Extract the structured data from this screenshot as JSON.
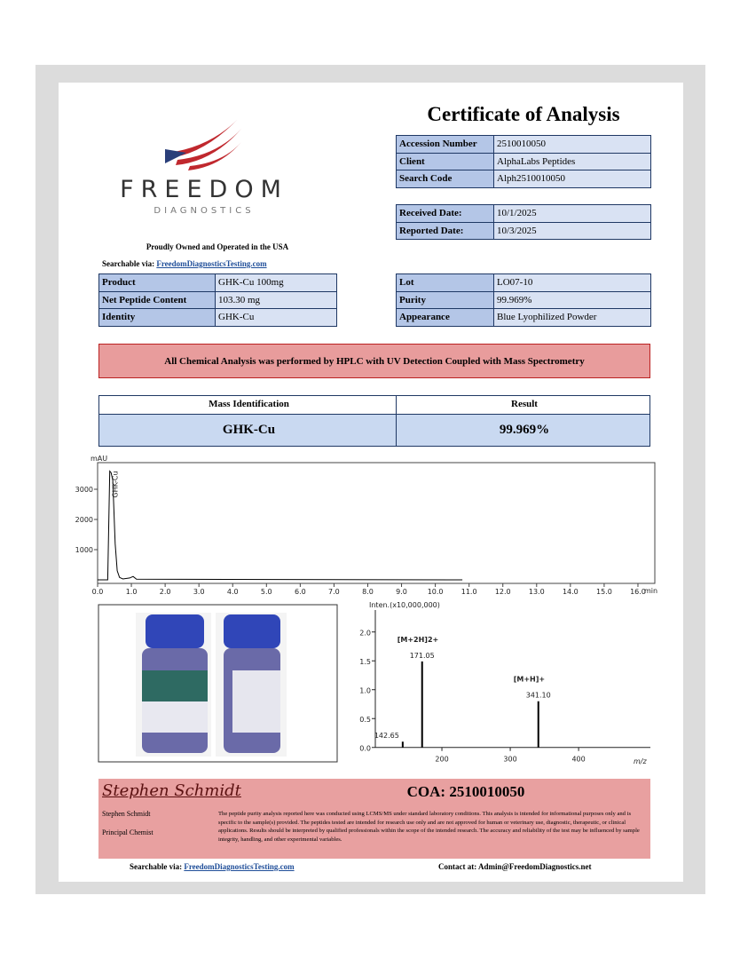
{
  "header": {
    "title": "Certificate of Analysis",
    "logo_name": "FREEDOM",
    "logo_sub": "DIAGNOSTICS",
    "tagline": "Proudly Owned and Operated in the USA",
    "searchable_label": "Searchable via:",
    "searchable_link": "FreedomDiagnosticsTesting.com"
  },
  "info_table": {
    "rows": [
      [
        "Accession Number",
        "2510010050"
      ],
      [
        "Client",
        "AlphaLabs Peptides"
      ],
      [
        "Search Code",
        "Alph2510010050"
      ]
    ]
  },
  "dates_table": {
    "rows": [
      [
        "Received Date:",
        "10/1/2025"
      ],
      [
        "Reported Date:",
        "10/3/2025"
      ]
    ]
  },
  "product_table": {
    "rows": [
      [
        "Product",
        "GHK-Cu 100mg"
      ],
      [
        "Net Peptide Content",
        "103.30 mg"
      ],
      [
        "Identity",
        "GHK-Cu"
      ]
    ]
  },
  "lot_table": {
    "rows": [
      [
        "Lot",
        "LO07-10"
      ],
      [
        "Purity",
        "99.969%"
      ],
      [
        "Appearance",
        "Blue Lyophilized Powder"
      ]
    ]
  },
  "method_banner": "All Chemical Analysis was performed by HPLC with UV Detection Coupled with Mass Spectrometry",
  "result_table": {
    "header": [
      "Mass Identification",
      "Result"
    ],
    "row": [
      "GHK-Cu",
      "99.969%"
    ]
  },
  "chromatogram": {
    "type": "line",
    "y_label": "mAU",
    "x_label": "min",
    "peak_label": "GHK-Cu",
    "color": "#000000",
    "x": [
      0,
      0.3,
      0.36,
      0.4,
      0.45,
      0.52,
      0.58,
      0.65,
      0.75,
      0.95,
      1.05,
      1.15,
      10.8
    ],
    "values": [
      0,
      0,
      3600,
      3550,
      3300,
      1200,
      300,
      80,
      30,
      60,
      110,
      20,
      0
    ],
    "xlim": [
      0,
      16.5
    ],
    "ylim": [
      -118,
      3882
    ],
    "xticks": [
      {
        "value": 0,
        "label": "0.0"
      },
      {
        "value": 1,
        "label": "1.0"
      },
      {
        "value": 2,
        "label": "2.0"
      },
      {
        "value": 3,
        "label": "3.0"
      },
      {
        "value": 4,
        "label": "4.0"
      },
      {
        "value": 5,
        "label": "5.0"
      },
      {
        "value": 6,
        "label": "6.0"
      },
      {
        "value": 7,
        "label": "7.0"
      },
      {
        "value": 8,
        "label": "8.0"
      },
      {
        "value": 9,
        "label": "9.0"
      },
      {
        "value": 10,
        "label": "10.0"
      },
      {
        "value": 11,
        "label": "11.0"
      },
      {
        "value": 12,
        "label": "12.0"
      },
      {
        "value": 13,
        "label": "13.0"
      },
      {
        "value": 14,
        "label": "14.0"
      },
      {
        "value": 15,
        "label": "15.0"
      },
      {
        "value": 16,
        "label": "16.0"
      }
    ],
    "yticks": [
      1000,
      2000,
      3000
    ]
  },
  "mass_spectrum": {
    "type": "bar",
    "y_label": "Inten.(x10,000,000)",
    "x_label": "m/z",
    "color": "#000000",
    "x": [
      142.65,
      171.05,
      341.1
    ],
    "peak_labels": [
      "142.65",
      "171.05",
      "341.10"
    ],
    "values": [
      0.1,
      1.49,
      0.8
    ],
    "annotations": [
      "[M+2H]2+",
      "[M+H]+"
    ],
    "xlim": [
      102.6,
      505
    ],
    "ylim": [
      -0.05,
      2.38
    ],
    "xticks": [
      200,
      300,
      400
    ],
    "yticks": [
      {
        "value": 0,
        "label": "0.0"
      },
      0.5,
      {
        "value": 1,
        "label": "1.0"
      },
      1.5,
      {
        "value": 2,
        "label": "2.0"
      }
    ]
  },
  "footer": {
    "signature": "Stephen Schmidt",
    "coa": "COA: 2510010050",
    "name": "Stephen Schmidt",
    "role": "Principal Chemist",
    "disclaimer": "The peptide purity analysis reported here was conducted using LCMS/MS under standard laboratory conditions. This analysis is intended for informational purposes only and is specific to the sample(s) provided. The peptides tested are intended for research use only and are not approved for human or veterinary use, diagnostic, therapeutic, or clinical applications. Results should be interpreted by qualified professionals within the scope of the intended research. The accuracy and reliability of the test may be influenced by sample integrity, handling, and other experimental variables.",
    "searchable_label": "Searchable via:",
    "searchable_link": "FreedomDiagnosticsTesting.com",
    "contact": "Contact at: Admin@FreedomDiagnostics.net"
  }
}
